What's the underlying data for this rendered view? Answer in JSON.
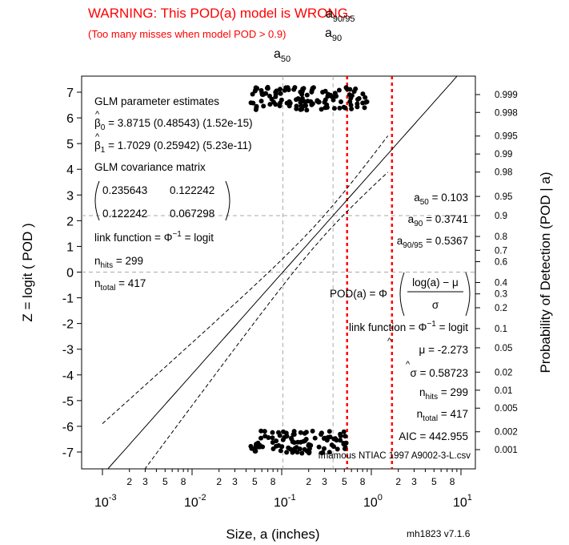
{
  "header": {
    "warning_line1": "WARNING: This POD(a) model is WRONG.",
    "warning_line2": "(Too many misses when model POD > 0.9)"
  },
  "colors": {
    "warning": "#ff0000",
    "refline": "#aaaaaa",
    "ink": "#000000"
  },
  "chart_data": {
    "type": "scatter",
    "xlabel": "Size, a (inches)",
    "ylabel_left": "Z = logit ( POD )",
    "ylabel_right": "Probability of Detection (POD | a)",
    "x_scale": "log10",
    "xlim": [
      0.001,
      10
    ],
    "ylim": [
      -7,
      7
    ],
    "x_major_ticks": [
      0.001,
      0.01,
      0.1,
      1,
      10
    ],
    "x_major_labels": [
      {
        "base": "10",
        "exp": "-3"
      },
      {
        "base": "10",
        "exp": "-2"
      },
      {
        "base": "10",
        "exp": "-1"
      },
      {
        "base": "10",
        "exp": "0"
      },
      {
        "base": "10",
        "exp": "1"
      }
    ],
    "x_minor_labels": [
      "2",
      "3",
      "5",
      "8"
    ],
    "y_ticks": [
      7,
      6,
      5,
      4,
      3,
      2,
      1,
      0,
      -1,
      -2,
      -3,
      -4,
      -5,
      -6,
      -7
    ],
    "right_ticks": [
      {
        "label": "0.999",
        "p": 0.999
      },
      {
        "label": "0.998",
        "p": 0.998
      },
      {
        "label": "0.995",
        "p": 0.995
      },
      {
        "label": "0.99",
        "p": 0.99
      },
      {
        "label": "0.98",
        "p": 0.98
      },
      {
        "label": "0.95",
        "p": 0.95
      },
      {
        "label": "0.9",
        "p": 0.9
      },
      {
        "label": "0.8",
        "p": 0.8
      },
      {
        "label": "0.7",
        "p": 0.7
      },
      {
        "label": "0.6",
        "p": 0.6
      },
      {
        "label": "0.4",
        "p": 0.4
      },
      {
        "label": "0.3",
        "p": 0.3
      },
      {
        "label": "0.2",
        "p": 0.2
      },
      {
        "label": "0.1",
        "p": 0.1
      },
      {
        "label": "0.05",
        "p": 0.05
      },
      {
        "label": "0.02",
        "p": 0.02
      },
      {
        "label": "0.01",
        "p": 0.01
      },
      {
        "label": "0.005",
        "p": 0.005
      },
      {
        "label": "0.002",
        "p": 0.002
      },
      {
        "label": "0.001",
        "p": 0.001
      }
    ],
    "fit": {
      "beta0": 3.8715,
      "beta1": 1.7029
    },
    "a50": 0.103,
    "a90": 0.3741,
    "a90_95": 0.5367,
    "vline_labels": {
      "a50": {
        "base": "a",
        "sub": "50"
      },
      "a90": {
        "base": "a",
        "sub": "90"
      },
      "a90_95": {
        "base": "a",
        "sub": "90/95"
      }
    },
    "hit_range": [
      0.045,
      0.9
    ],
    "miss_range": [
      0.045,
      0.55
    ],
    "n_hits": 299,
    "n_total": 417
  },
  "annotations": {
    "glm_title": "GLM parameter estimates",
    "beta0_sym": "β",
    "beta0_sub": "0",
    "beta0_text": " = 3.8715 (0.48543) (1.52e-15)",
    "beta1_sym": "β",
    "beta1_sub": "1",
    "beta1_text": " = 1.7029 (0.25942) (5.23e-11)",
    "cov_title": "GLM covariance matrix",
    "cov_r1c1": "0.235643",
    "cov_r1c2": "0.122242",
    "cov_r2c1": "0.122242",
    "cov_r2c2": "0.067298",
    "link_left_prefix": "link function = ",
    "link_phi": "Φ",
    "link_sup": "−1",
    "link_suffix": " = logit",
    "nhits_n": "n",
    "nhits_sub": "hits",
    "nhits_val": " = 299",
    "ntotal_n": "n",
    "ntotal_sub": "total",
    "ntotal_val": " = 417",
    "a50_eq": "a",
    "a50_sub": "50",
    "a50_val": " = 0.103",
    "a90_eq": "a",
    "a90_sub": "90",
    "a90_val": " = 0.3741",
    "a9095_eq": "a",
    "a9095_sub": "90/95",
    "a9095_val": " = 0.5367",
    "pod_left": "POD(a) = Φ",
    "pod_num": "log(a) − μ",
    "pod_den": "σ",
    "mu_sym": "μ",
    "mu_val": " = -2.273",
    "sigma_sym": "σ",
    "sigma_val": " = 0.58723",
    "rn_hits_n": "n",
    "rn_hits_sub": "hits",
    "rn_hits_val": " = 299",
    "rn_total_n": "n",
    "rn_total_sub": "total",
    "rn_total_val": " = 417",
    "aic": "AIC = 442.955",
    "source": "fmamous  NTIAC 1997 A9002-3-L.csv",
    "version": "mh1823 v7.1.6"
  }
}
